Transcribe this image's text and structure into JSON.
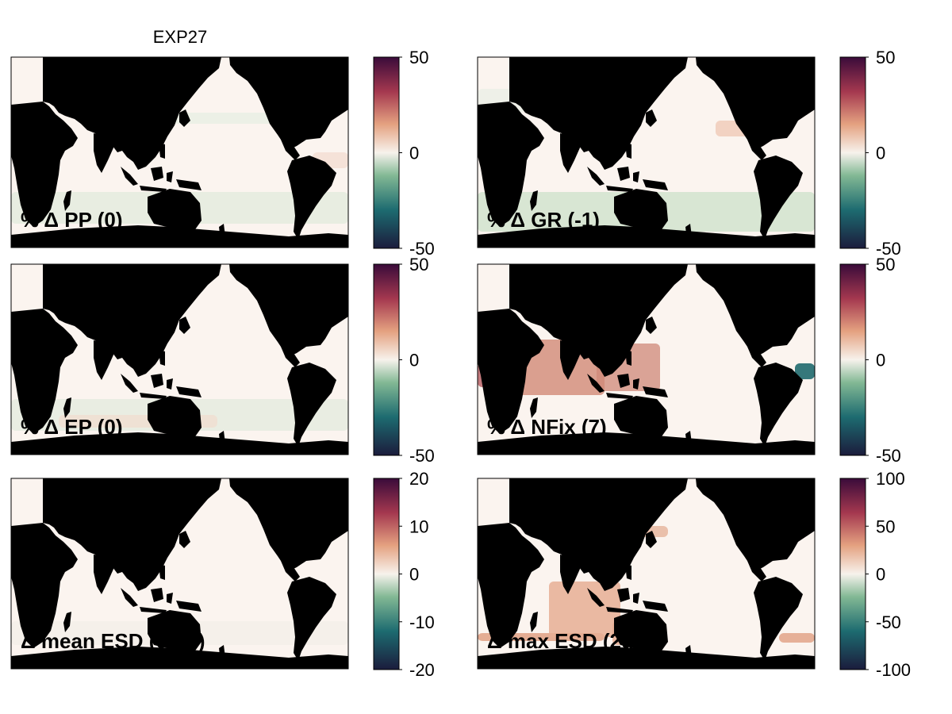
{
  "figure": {
    "title": "EXP27"
  },
  "panels": [
    {
      "label": "% Δ PP (0)",
      "colorbar": {
        "min": -50,
        "max": 50,
        "ticks": [
          "50",
          "0",
          "-50"
        ]
      },
      "pattern": "pp"
    },
    {
      "label": "% Δ GR (-1)",
      "colorbar": {
        "min": -50,
        "max": 50,
        "ticks": [
          "50",
          "0",
          "-50"
        ]
      },
      "pattern": "gr"
    },
    {
      "label": "% Δ EP (0)",
      "colorbar": {
        "min": -50,
        "max": 50,
        "ticks": [
          "50",
          "0",
          "-50"
        ]
      },
      "pattern": "ep"
    },
    {
      "label": "% Δ NFix (7)",
      "colorbar": {
        "min": -50,
        "max": 50,
        "ticks": [
          "50",
          "0",
          "-50"
        ]
      },
      "pattern": "nfix"
    },
    {
      "label": "Δ mean ESD (0um)",
      "colorbar": {
        "min": -20,
        "max": 20,
        "ticks": [
          "20",
          "10",
          "0",
          "-10",
          "-20"
        ]
      },
      "pattern": "mean"
    },
    {
      "label": "Δ max ESD (2um)",
      "colorbar": {
        "min": -100,
        "max": 100,
        "ticks": [
          "100",
          "50",
          "0",
          "-50",
          "-100"
        ]
      },
      "pattern": "max"
    }
  ],
  "colormap": {
    "name": "diverging-purple-red-white-green-navy",
    "stops": [
      "#1b1c3c",
      "#1d6b70",
      "#82b894",
      "#f7f2ec",
      "#e4a180",
      "#a4384f",
      "#3a0b3a"
    ]
  },
  "land_color": "#000000"
}
